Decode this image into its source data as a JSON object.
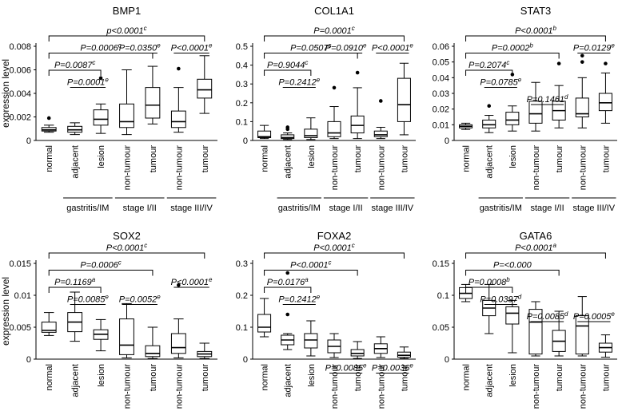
{
  "figure": {
    "ylabel": "expression level",
    "xtick_labels": [
      "normal",
      "adjacent",
      "lesion",
      "non-tumour",
      "tumour",
      "non-tumour",
      "tumour"
    ],
    "groups": [
      {
        "label": "gastritis/IM",
        "from": 1,
        "to": 2
      },
      {
        "label": "stage I/II",
        "from": 3,
        "to": 4
      },
      {
        "label": "stage III/IV",
        "from": 5,
        "to": 6
      }
    ]
  },
  "chart_data": [
    {
      "type": "boxplot",
      "title": "BMP1",
      "ylabel": "expression level",
      "ylim": [
        0,
        0.008
      ],
      "yticks": [
        "0",
        "0.002",
        "0.004",
        "0.006",
        "0.008"
      ],
      "ytick_values": [
        0,
        0.002,
        0.004,
        0.006,
        0.008
      ],
      "boxes": [
        {
          "min": 0.0007,
          "q1": 0.0008,
          "median": 0.0009,
          "q3": 0.0011,
          "max": 0.0013,
          "outliers": [
            0.0019
          ]
        },
        {
          "min": 0.0005,
          "q1": 0.0007,
          "median": 0.0009,
          "q3": 0.0012,
          "max": 0.0015,
          "outliers": []
        },
        {
          "min": 0.0006,
          "q1": 0.0013,
          "median": 0.0018,
          "q3": 0.0026,
          "max": 0.0031,
          "outliers": [
            0.0053
          ]
        },
        {
          "min": 0.0005,
          "q1": 0.0011,
          "median": 0.0016,
          "q3": 0.0031,
          "max": 0.006,
          "outliers": []
        },
        {
          "min": 0.0014,
          "q1": 0.0019,
          "median": 0.003,
          "q3": 0.0045,
          "max": 0.0063,
          "outliers": []
        },
        {
          "min": 0.0007,
          "q1": 0.0011,
          "median": 0.0016,
          "q3": 0.0025,
          "max": 0.0045,
          "outliers": [
            0.0061
          ]
        },
        {
          "min": 0.0023,
          "q1": 0.0036,
          "median": 0.0043,
          "q3": 0.0052,
          "max": 0.0072,
          "outliers": []
        }
      ],
      "comparisons": [
        {
          "from": 0,
          "to": 6,
          "text": "p<0.0001",
          "sup": "c",
          "level": 0
        },
        {
          "from": 0,
          "to": 4,
          "text": "P=0.0006",
          "sup": "c",
          "level": 1
        },
        {
          "from": 0,
          "to": 2,
          "text": "P=0.0087",
          "sup": "c",
          "level": 2
        },
        {
          "from": 1,
          "to": 2,
          "text": "P=0.0001",
          "sup": "e",
          "level": 3,
          "underline": true
        },
        {
          "from": 3,
          "to": 4,
          "text": "P=0.0350",
          "sup": "e",
          "level": 1,
          "underline": true
        },
        {
          "from": 5,
          "to": 6,
          "text": "P<0.0001",
          "sup": "e",
          "level": 1,
          "underline": true
        }
      ]
    },
    {
      "type": "boxplot",
      "title": "COL1A1",
      "ylim": [
        0,
        0.5
      ],
      "yticks": [
        "0",
        "0.1",
        "0.2",
        "0.3",
        "0.4",
        "0.5"
      ],
      "ytick_values": [
        0,
        0.1,
        0.2,
        0.3,
        0.4,
        0.5
      ],
      "boxes": [
        {
          "min": 0.01,
          "q1": 0.015,
          "median": 0.02,
          "q3": 0.05,
          "max": 0.08,
          "outliers": []
        },
        {
          "min": 0.005,
          "q1": 0.01,
          "median": 0.015,
          "q3": 0.03,
          "max": 0.04,
          "outliers": [
            0.06,
            0.07
          ]
        },
        {
          "min": 0.005,
          "q1": 0.015,
          "median": 0.025,
          "q3": 0.06,
          "max": 0.12,
          "outliers": []
        },
        {
          "min": 0.01,
          "q1": 0.02,
          "median": 0.04,
          "q3": 0.1,
          "max": 0.18,
          "outliers": [
            0.28
          ]
        },
        {
          "min": 0.01,
          "q1": 0.04,
          "median": 0.08,
          "q3": 0.13,
          "max": 0.28,
          "outliers": [
            0.36
          ]
        },
        {
          "min": 0.01,
          "q1": 0.02,
          "median": 0.03,
          "q3": 0.05,
          "max": 0.07,
          "outliers": [
            0.21
          ]
        },
        {
          "min": 0.03,
          "q1": 0.1,
          "median": 0.19,
          "q3": 0.33,
          "max": 0.41,
          "outliers": []
        }
      ],
      "comparisons": [
        {
          "from": 0,
          "to": 6,
          "text": "P=0.0001",
          "sup": "c",
          "level": 0
        },
        {
          "from": 0,
          "to": 4,
          "text": "P=0.0507",
          "sup": "c",
          "level": 1
        },
        {
          "from": 0,
          "to": 2,
          "text": "P=0.9044",
          "sup": "c",
          "level": 2
        },
        {
          "from": 1,
          "to": 2,
          "text": "P=0.2412",
          "sup": "e",
          "level": 3,
          "underline": true
        },
        {
          "from": 3,
          "to": 4,
          "text": "P=0.0910",
          "sup": "e",
          "level": 1,
          "underline": true
        },
        {
          "from": 5,
          "to": 6,
          "text": "P<0.0001",
          "sup": "e",
          "level": 1,
          "underline": true
        }
      ]
    },
    {
      "type": "boxplot",
      "title": "STAT3",
      "ylim": [
        0,
        0.06
      ],
      "yticks": [
        "0",
        "0.01",
        "0.02",
        "0.03",
        "0.04",
        "0.05",
        "0.06"
      ],
      "ytick_values": [
        0,
        0.01,
        0.02,
        0.03,
        0.04,
        0.05,
        0.06
      ],
      "boxes": [
        {
          "min": 0.007,
          "q1": 0.008,
          "median": 0.009,
          "q3": 0.01,
          "max": 0.011,
          "outliers": []
        },
        {
          "min": 0.005,
          "q1": 0.008,
          "median": 0.01,
          "q3": 0.013,
          "max": 0.016,
          "outliers": [
            0.022
          ]
        },
        {
          "min": 0.006,
          "q1": 0.01,
          "median": 0.013,
          "q3": 0.018,
          "max": 0.022,
          "outliers": [
            0.042
          ]
        },
        {
          "min": 0.006,
          "q1": 0.011,
          "median": 0.017,
          "q3": 0.025,
          "max": 0.037,
          "outliers": []
        },
        {
          "min": 0.008,
          "q1": 0.013,
          "median": 0.019,
          "q3": 0.025,
          "max": 0.035,
          "outliers": [
            0.049
          ]
        },
        {
          "min": 0.008,
          "q1": 0.015,
          "median": 0.017,
          "q3": 0.027,
          "max": 0.04,
          "outliers": [
            0.05,
            0.054
          ]
        },
        {
          "min": 0.011,
          "q1": 0.019,
          "median": 0.024,
          "q3": 0.03,
          "max": 0.043,
          "outliers": [
            0.049
          ]
        }
      ],
      "comparisons": [
        {
          "from": 0,
          "to": 6,
          "text": "P<0.0001",
          "sup": "b",
          "level": 0
        },
        {
          "from": 0,
          "to": 4,
          "text": "P=0.0002",
          "sup": "b",
          "level": 1
        },
        {
          "from": 0,
          "to": 2,
          "text": "P=0.2074",
          "sup": "c",
          "level": 2
        },
        {
          "from": 1,
          "to": 2,
          "text": "P=0.0785",
          "sup": "e",
          "level": 3,
          "underline": true
        },
        {
          "from": 3,
          "to": 4,
          "text": "P=0.1461",
          "sup": "d",
          "level": 4,
          "underline": true
        },
        {
          "from": 5,
          "to": 6,
          "text": "P=0.0129",
          "sup": "e",
          "level": 1,
          "underline": true
        }
      ]
    },
    {
      "type": "boxplot",
      "title": "SOX2",
      "ylabel": "expression level",
      "ylim": [
        0,
        0.015
      ],
      "yticks": [
        "0",
        "0.005",
        "0.01",
        "0.015"
      ],
      "ytick_values": [
        0,
        0.005,
        0.01,
        0.015
      ],
      "boxes": [
        {
          "min": 0.0037,
          "q1": 0.0042,
          "median": 0.0045,
          "q3": 0.0058,
          "max": 0.0073,
          "outliers": []
        },
        {
          "min": 0.0028,
          "q1": 0.0043,
          "median": 0.0058,
          "q3": 0.0073,
          "max": 0.0105,
          "outliers": []
        },
        {
          "min": 0.0013,
          "q1": 0.0031,
          "median": 0.0039,
          "q3": 0.0046,
          "max": 0.0062,
          "outliers": []
        },
        {
          "min": 0.0002,
          "q1": 0.0007,
          "median": 0.0022,
          "q3": 0.0063,
          "max": 0.0087,
          "outliers": []
        },
        {
          "min": 0.0001,
          "q1": 0.0004,
          "median": 0.0009,
          "q3": 0.0021,
          "max": 0.005,
          "outliers": []
        },
        {
          "min": 0.0002,
          "q1": 0.0009,
          "median": 0.0018,
          "q3": 0.004,
          "max": 0.0063,
          "outliers": [
            0.0116
          ]
        },
        {
          "min": 0.0001,
          "q1": 0.0004,
          "median": 0.0008,
          "q3": 0.0012,
          "max": 0.0025,
          "outliers": []
        }
      ],
      "comparisons": [
        {
          "from": 0,
          "to": 6,
          "text": "P<0.0001",
          "sup": "c",
          "level": 0
        },
        {
          "from": 0,
          "to": 4,
          "text": "P=0.0006",
          "sup": "c",
          "level": 1
        },
        {
          "from": 0,
          "to": 2,
          "text": "P=0.1169",
          "sup": "a",
          "level": 2
        },
        {
          "from": 1,
          "to": 2,
          "text": "P=0.0085",
          "sup": "e",
          "level": 3,
          "underline": true
        },
        {
          "from": 3,
          "to": 4,
          "text": "P=0.0052",
          "sup": "e",
          "level": 3,
          "underline": true
        },
        {
          "from": 5,
          "to": 6,
          "text": "P<0.0001",
          "sup": "e",
          "level": 2,
          "underline": true
        }
      ]
    },
    {
      "type": "boxplot",
      "title": "FOXA2",
      "ylim": [
        0,
        0.3
      ],
      "yticks": [
        "0",
        "0.1",
        "0.2",
        "0.3"
      ],
      "ytick_values": [
        0,
        0.1,
        0.2,
        0.3
      ],
      "boxes": [
        {
          "min": 0.07,
          "q1": 0.085,
          "median": 0.1,
          "q3": 0.14,
          "max": 0.19,
          "outliers": []
        },
        {
          "min": 0.03,
          "q1": 0.045,
          "median": 0.06,
          "q3": 0.075,
          "max": 0.08,
          "outliers": [
            0.14,
            0.27
          ]
        },
        {
          "min": 0.01,
          "q1": 0.035,
          "median": 0.06,
          "q3": 0.08,
          "max": 0.12,
          "outliers": []
        },
        {
          "min": 0.005,
          "q1": 0.02,
          "median": 0.04,
          "q3": 0.06,
          "max": 0.08,
          "outliers": []
        },
        {
          "min": 0.002,
          "q1": 0.01,
          "median": 0.018,
          "q3": 0.03,
          "max": 0.055,
          "outliers": []
        },
        {
          "min": 0.005,
          "q1": 0.018,
          "median": 0.033,
          "q3": 0.048,
          "max": 0.07,
          "outliers": []
        },
        {
          "min": 0.002,
          "q1": 0.006,
          "median": 0.012,
          "q3": 0.022,
          "max": 0.038,
          "outliers": []
        }
      ],
      "comparisons": [
        {
          "from": 0,
          "to": 6,
          "text": "P<0.0001",
          "sup": "c",
          "level": 0
        },
        {
          "from": 0,
          "to": 4,
          "text": "P<0.0001",
          "sup": "c",
          "level": 1
        },
        {
          "from": 0,
          "to": 2,
          "text": "P=0.0176",
          "sup": "a",
          "level": 2
        },
        {
          "from": 1,
          "to": 2,
          "text": "P=0.2412",
          "sup": "e",
          "level": 3,
          "underline": true
        },
        {
          "from": 3,
          "to": 4,
          "text": "P=0.0085",
          "sup": "e",
          "level": 7,
          "underline": true
        },
        {
          "from": 5,
          "to": 6,
          "text": "P=0.0036",
          "sup": "e",
          "level": 7,
          "underline": true
        }
      ]
    },
    {
      "type": "boxplot",
      "title": "GATA6",
      "ylim": [
        0,
        0.15
      ],
      "yticks": [
        "0",
        "0.05",
        "0.1",
        "0.15"
      ],
      "ytick_values": [
        0,
        0.05,
        0.1,
        0.15
      ],
      "boxes": [
        {
          "min": 0.09,
          "q1": 0.095,
          "median": 0.103,
          "q3": 0.112,
          "max": 0.117,
          "outliers": []
        },
        {
          "min": 0.04,
          "q1": 0.068,
          "median": 0.08,
          "q3": 0.092,
          "max": 0.117,
          "outliers": []
        },
        {
          "min": 0.01,
          "q1": 0.055,
          "median": 0.072,
          "q3": 0.082,
          "max": 0.092,
          "outliers": []
        },
        {
          "min": 0.005,
          "q1": 0.008,
          "median": 0.058,
          "q3": 0.078,
          "max": 0.09,
          "outliers": []
        },
        {
          "min": 0.005,
          "q1": 0.012,
          "median": 0.028,
          "q3": 0.045,
          "max": 0.075,
          "outliers": []
        },
        {
          "min": 0.005,
          "q1": 0.008,
          "median": 0.052,
          "q3": 0.068,
          "max": 0.098,
          "outliers": []
        },
        {
          "min": 0.003,
          "q1": 0.011,
          "median": 0.018,
          "q3": 0.025,
          "max": 0.038,
          "outliers": []
        }
      ],
      "comparisons": [
        {
          "from": 0,
          "to": 6,
          "text": "P<0.0001",
          "sup": "a",
          "level": 0
        },
        {
          "from": 0,
          "to": 4,
          "text": "P=<0.000",
          "sup": "",
          "level": 1
        },
        {
          "from": 0,
          "to": 2,
          "text": "P=0.0008",
          "sup": "b",
          "level": 2
        },
        {
          "from": 1,
          "to": 2,
          "text": "P=0.0397",
          "sup": "d",
          "level": 3,
          "underline": true
        },
        {
          "from": 3,
          "to": 4,
          "text": "P=0.0085",
          "sup": "d",
          "level": 4,
          "underline": true
        },
        {
          "from": 5,
          "to": 6,
          "text": "P=0.0005",
          "sup": "e",
          "level": 4,
          "underline": true
        }
      ]
    }
  ]
}
